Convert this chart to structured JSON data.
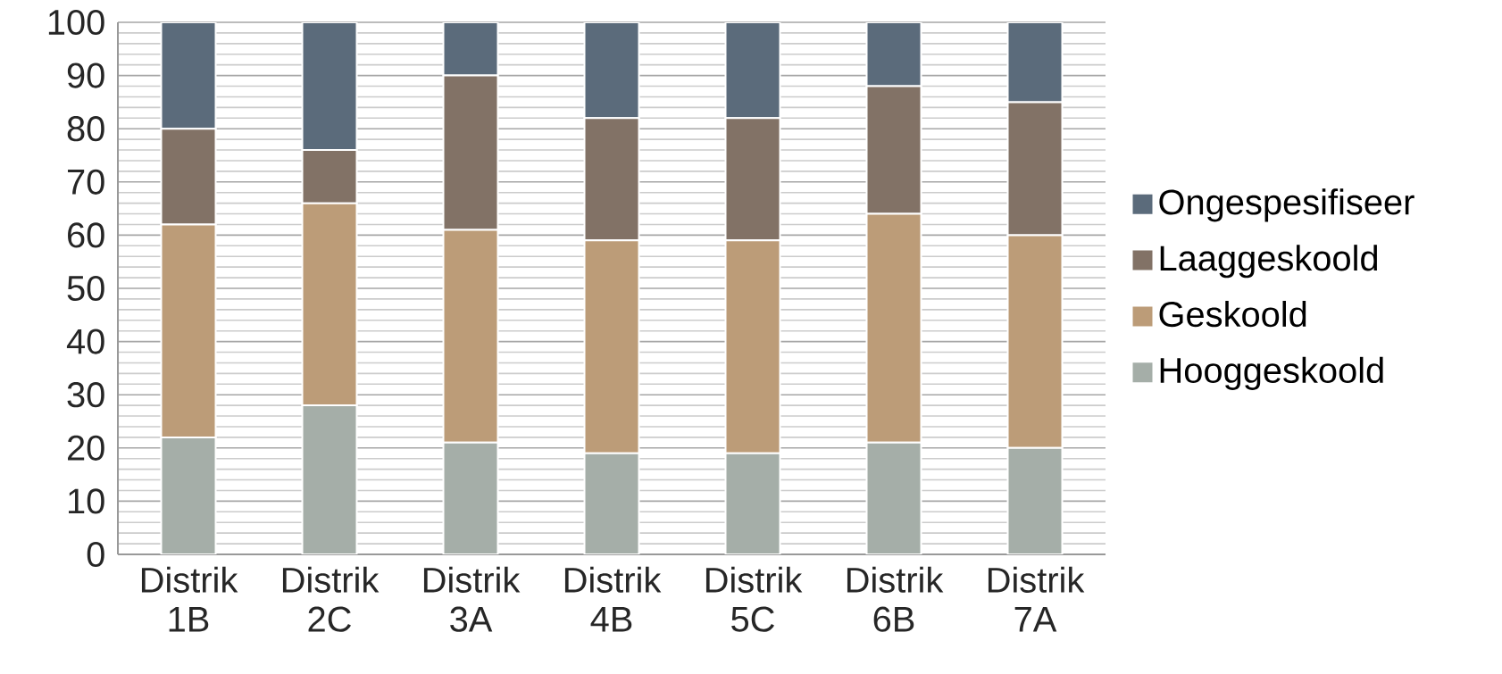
{
  "chart_data": {
    "type": "bar",
    "stacked": true,
    "categories": [
      "Distrik 1B",
      "Distrik 2C",
      "Distrik 3A",
      "Distrik 4B",
      "Distrik 5C",
      "Distrik 6B",
      "Distrik 7A"
    ],
    "series": [
      {
        "name": "Hooggeskoold",
        "color": "#a5aea8",
        "values": [
          22,
          28,
          21,
          19,
          19,
          21,
          20
        ]
      },
      {
        "name": "Geskoold",
        "color": "#bc9c78",
        "values": [
          40,
          38,
          40,
          40,
          40,
          43,
          40
        ]
      },
      {
        "name": "Laaggeskoold",
        "color": "#827266",
        "values": [
          18,
          10,
          29,
          23,
          23,
          24,
          25
        ]
      },
      {
        "name": "Ongespesifiseer",
        "color": "#5b6b7b",
        "values": [
          20,
          24,
          10,
          18,
          18,
          12,
          15
        ]
      }
    ],
    "ylim": [
      0,
      100
    ],
    "yticks": [
      0,
      10,
      20,
      30,
      40,
      50,
      60,
      70,
      80,
      90,
      100
    ],
    "grid": "y",
    "legend": "right"
  }
}
